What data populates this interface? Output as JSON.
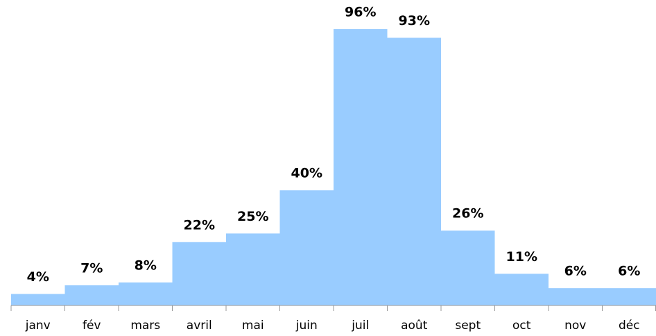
{
  "chart_data": {
    "type": "bar",
    "categories": [
      "janv",
      "fév",
      "mars",
      "avril",
      "mai",
      "juin",
      "juil",
      "août",
      "sept",
      "oct",
      "nov",
      "déc"
    ],
    "values": [
      4,
      7,
      8,
      22,
      25,
      40,
      96,
      93,
      26,
      11,
      6,
      6
    ],
    "value_labels": [
      "4%",
      "7%",
      "8%",
      "22%",
      "25%",
      "40%",
      "96%",
      "93%",
      "26%",
      "11%",
      "6%",
      "6%"
    ],
    "color": "#99ccff"
  }
}
